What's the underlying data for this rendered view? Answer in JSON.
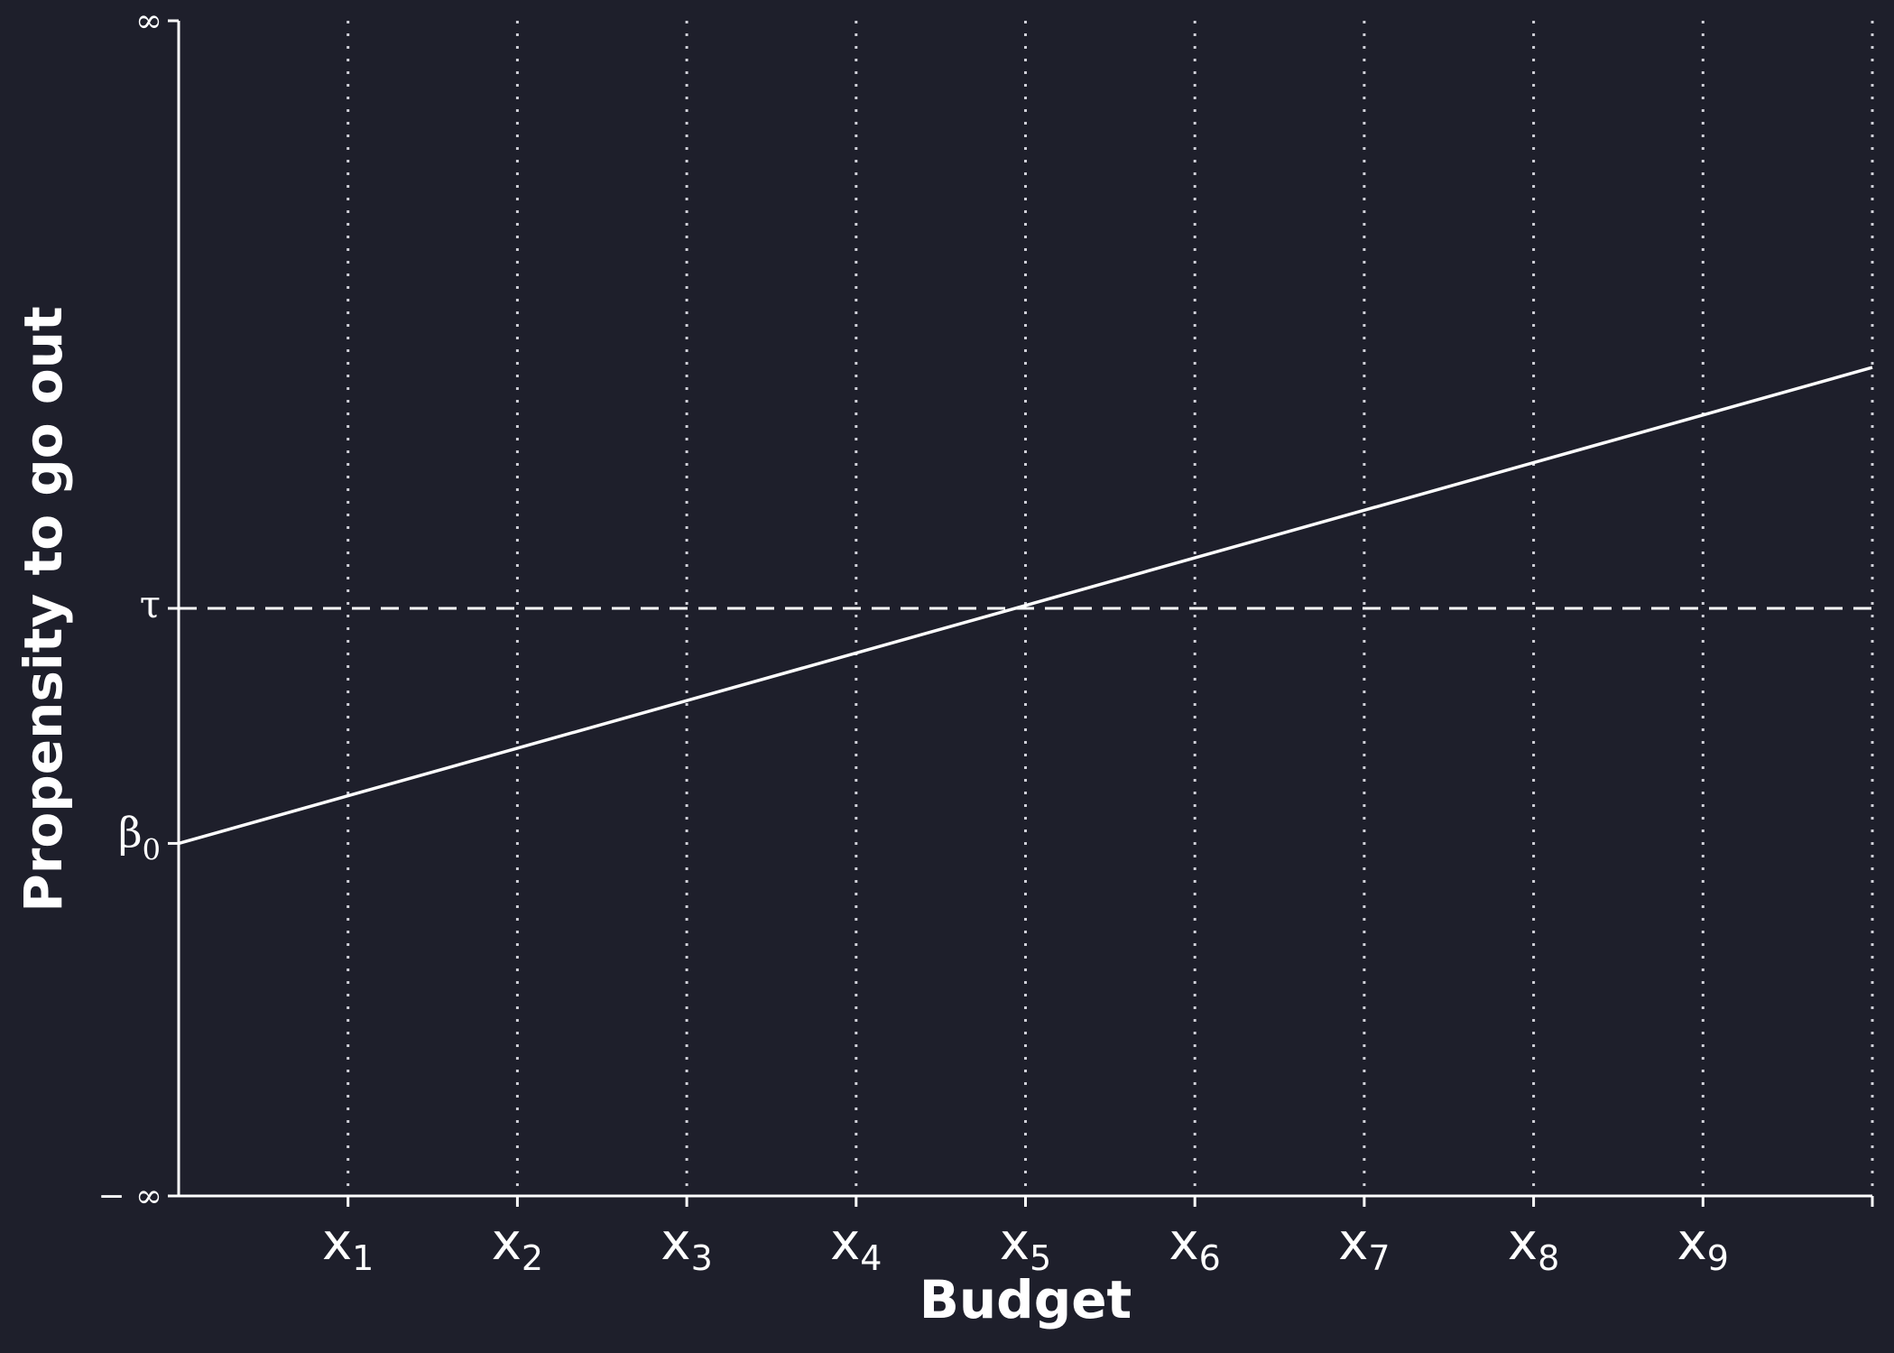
{
  "chart_data": {
    "type": "line",
    "xlabel": "Budget",
    "ylabel": "Propensity to go out",
    "x_tick_labels": [
      {
        "base": "x",
        "sub": "1"
      },
      {
        "base": "x",
        "sub": "2"
      },
      {
        "base": "x",
        "sub": "3"
      },
      {
        "base": "x",
        "sub": "4"
      },
      {
        "base": "x",
        "sub": "5"
      },
      {
        "base": "x",
        "sub": "6"
      },
      {
        "base": "x",
        "sub": "7"
      },
      {
        "base": "x",
        "sub": "8"
      },
      {
        "base": "x",
        "sub": "9"
      }
    ],
    "xlim": [
      0,
      10
    ],
    "y_ticks": {
      "top": "∞",
      "bottom": "− ∞",
      "tau": "τ",
      "beta0_base": "β",
      "beta0_sub": "0"
    },
    "ylim": [
      -1,
      1
    ],
    "tau_value": 0.0,
    "series": [
      {
        "x": [
          0,
          10
        ],
        "y": [
          -0.4,
          0.41
        ]
      }
    ],
    "gridlines": "vertical-dotted-at-x-ticks",
    "threshold_line": "horizontal-dashed-at-tau",
    "colors": {
      "background": "#1e1f2b",
      "foreground": "#ffffff",
      "grid": "#d0d0d8"
    }
  }
}
